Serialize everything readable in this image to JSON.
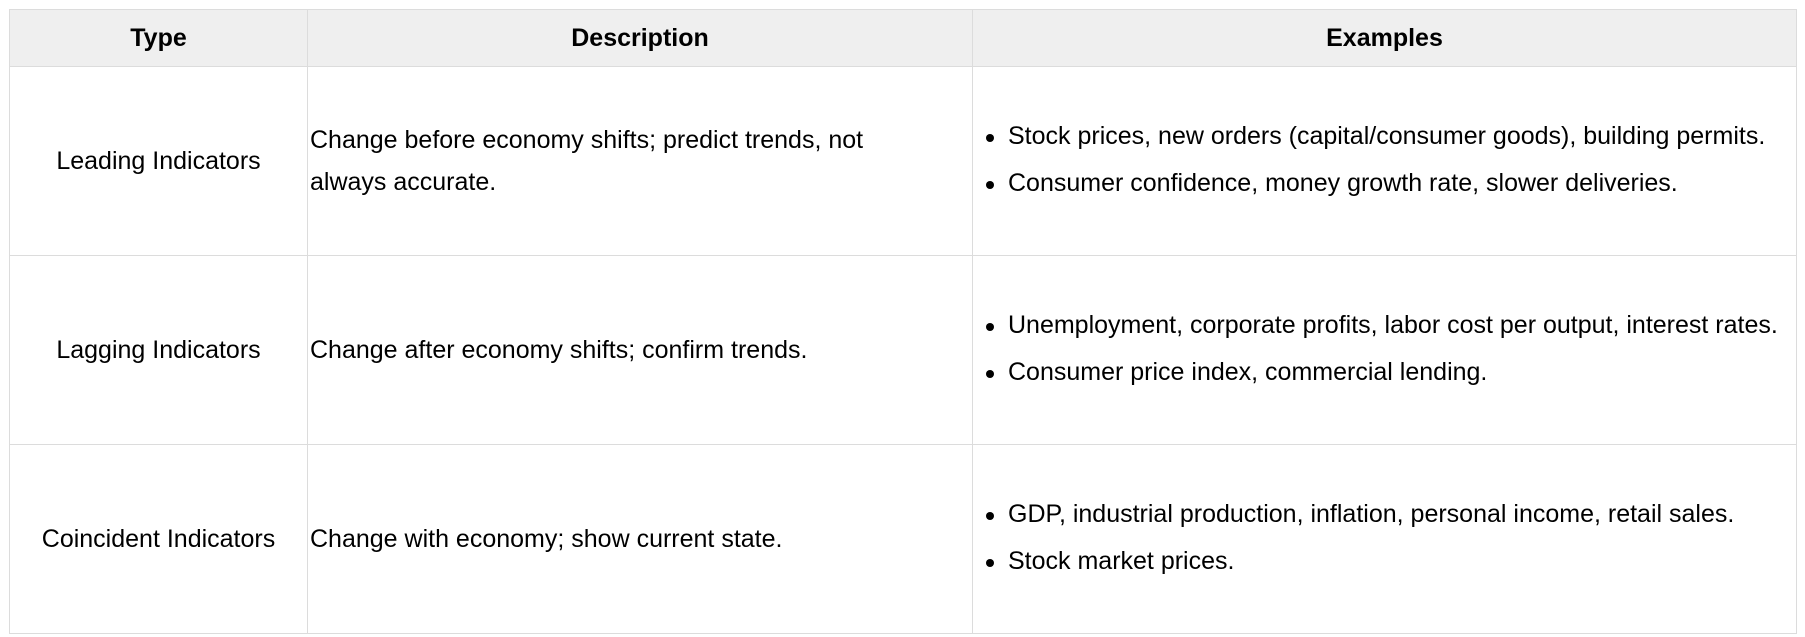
{
  "table": {
    "headers": {
      "type": "Type",
      "description": "Description",
      "examples": "Examples"
    },
    "rows": [
      {
        "type": "Leading Indicators",
        "description": "Change before economy shifts; predict trends, not always accurate.",
        "examples": [
          "Stock prices, new orders (capital/consumer goods), building permits.",
          "Consumer confidence, money growth rate, slower deliveries."
        ]
      },
      {
        "type": "Lagging Indicators",
        "description": "Change after economy shifts; confirm trends.",
        "examples": [
          "Unemployment, corporate profits, labor cost per output, interest rates.",
          "Consumer price index, commercial lending."
        ]
      },
      {
        "type": "Coincident Indicators",
        "description": "Change with economy; show current state.",
        "examples": [
          "GDP, industrial production, inflation, personal income, retail sales.",
          "Stock market prices."
        ]
      }
    ]
  }
}
